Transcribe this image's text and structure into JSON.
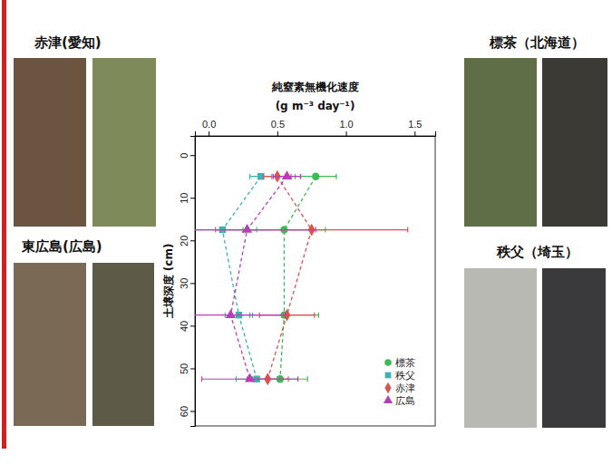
{
  "chart_data": {
    "type": "scatter",
    "title": "純窒素無機化速度",
    "x_label": "(g m⁻³ day⁻¹)",
    "y_label": "土壌深度 (cm)",
    "depths": [
      5,
      17.5,
      37.5,
      52.5
    ],
    "series": [
      {
        "name": "標茶",
        "color": "#3cba54",
        "marker": "circle",
        "line_style": "dashed",
        "values": [
          0.78,
          0.55,
          0.55,
          0.52
        ],
        "errors": [
          0.15,
          0.3,
          0.25,
          0.2
        ]
      },
      {
        "name": "秩父",
        "color": "#3bb3b3",
        "marker": "square",
        "line_style": "dashed",
        "values": [
          0.38,
          0.1,
          0.22,
          0.35
        ],
        "errors": [
          0.08,
          0.25,
          0.1,
          0.15
        ]
      },
      {
        "name": "赤津",
        "color": "#d9534f",
        "marker": "diamond",
        "line_style": "dashed",
        "values": [
          0.5,
          0.75,
          0.57,
          0.43
        ],
        "errors": [
          0.1,
          0.7,
          0.2,
          0.15
        ]
      },
      {
        "name": "広島",
        "color": "#b83dba",
        "marker": "triangle",
        "line_style": "dashed",
        "values": [
          0.57,
          0.28,
          0.16,
          0.3
        ],
        "errors": [
          0.1,
          0.5,
          0.4,
          0.35
        ]
      }
    ],
    "xlim": [
      -0.1,
      1.65
    ],
    "xticks": [
      {
        "value": 0,
        "label": "0.0"
      },
      {
        "value": 0.5,
        "label": "0.5"
      },
      {
        "value": 1,
        "label": "1.0"
      },
      {
        "value": 1.5,
        "label": "1.5"
      }
    ],
    "ylim": [
      63.5,
      -4.5
    ],
    "yticks": [
      0,
      10,
      20,
      30,
      40,
      50,
      60
    ],
    "legend": "lower right"
  },
  "photos": [
    {
      "label": "赤津(愛知)"
    },
    {
      "label": "東広島(広島)"
    },
    {
      "label": "標茶（北海道）"
    },
    {
      "label": "秩父（埼玉）"
    }
  ]
}
